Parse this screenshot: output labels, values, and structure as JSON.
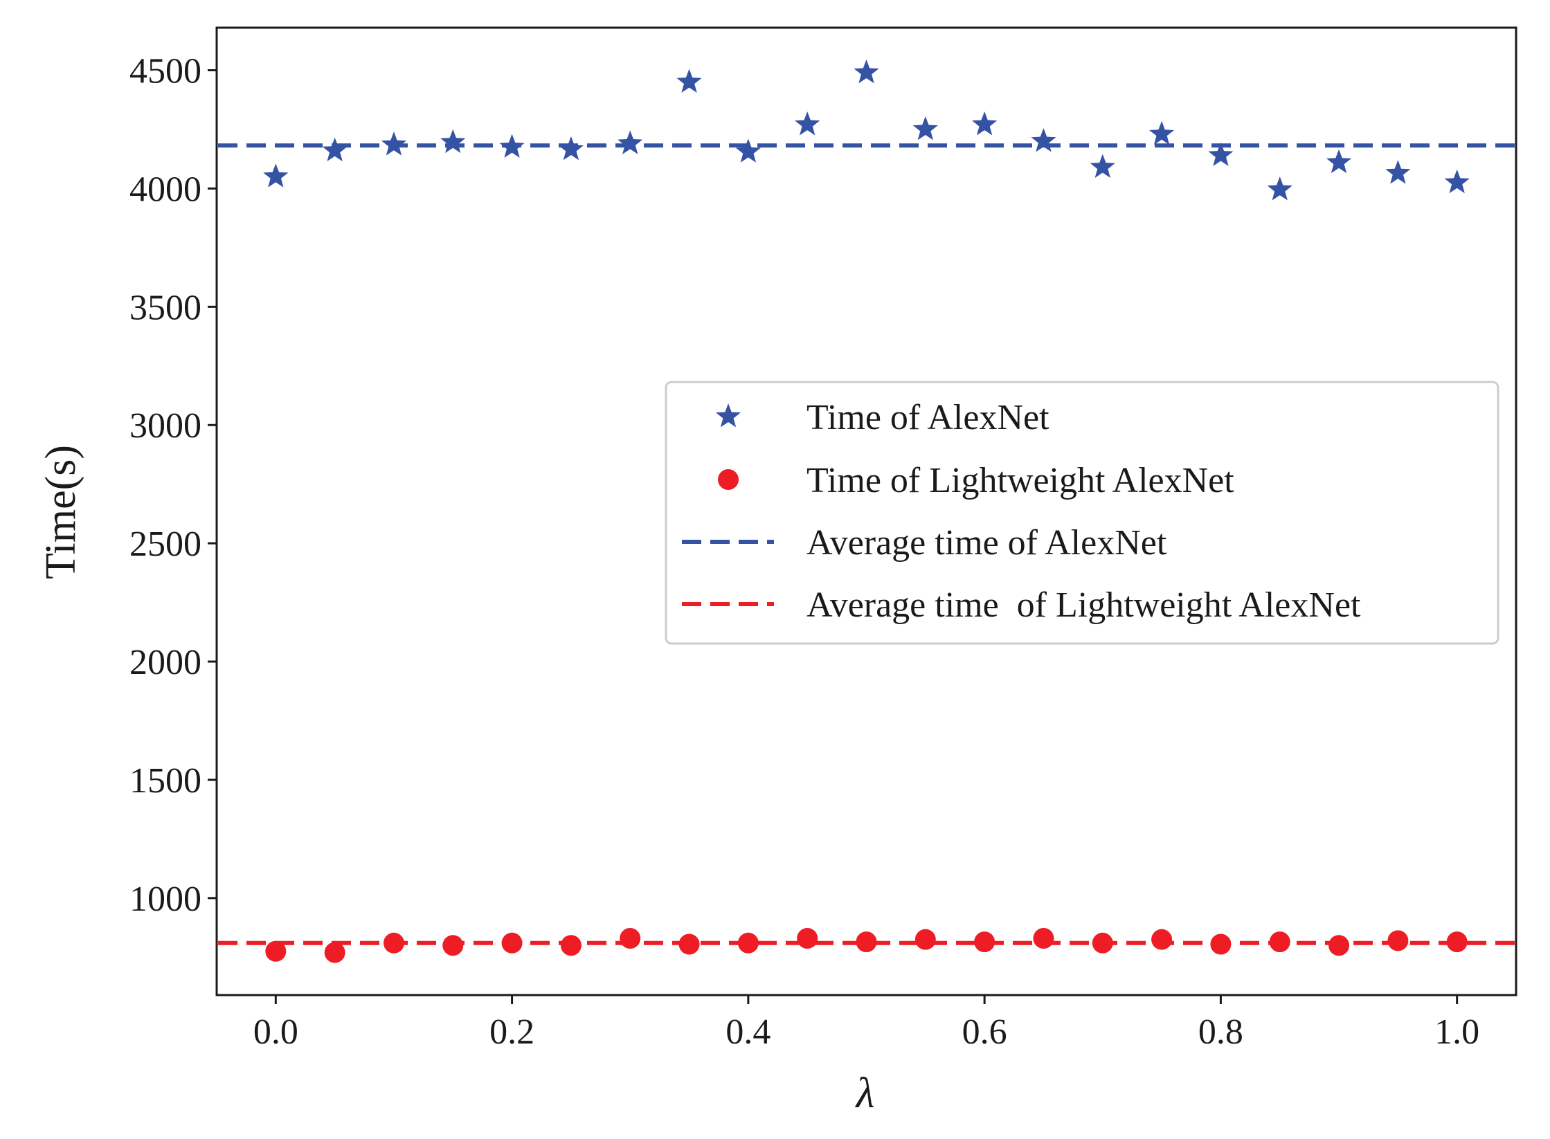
{
  "chart_data": {
    "type": "scatter",
    "title": "",
    "xlabel": "λ",
    "ylabel": "Time(s)",
    "xlim": [
      -0.05,
      1.05
    ],
    "ylim": [
      590,
      4680
    ],
    "xticks": [
      0.0,
      0.2,
      0.4,
      0.6,
      0.8,
      1.0
    ],
    "xtick_labels": [
      "0.0",
      "0.2",
      "0.4",
      "0.6",
      "0.8",
      "1.0"
    ],
    "yticks": [
      1000,
      1500,
      2000,
      2500,
      3000,
      3500,
      4000,
      4500
    ],
    "ytick_labels": [
      "1000",
      "1500",
      "2000",
      "2500",
      "3000",
      "3500",
      "4000",
      "4500"
    ],
    "x": [
      0.0,
      0.05,
      0.1,
      0.15,
      0.2,
      0.25,
      0.3,
      0.35,
      0.4,
      0.45,
      0.5,
      0.55,
      0.6,
      0.65,
      0.7,
      0.75,
      0.8,
      0.85,
      0.9,
      0.95,
      1.0
    ],
    "series": [
      {
        "name": "Time of AlexNet",
        "kind": "scatter",
        "marker": "star",
        "color": "#3553a4",
        "values": [
          4050,
          4160,
          4185,
          4195,
          4175,
          4165,
          4190,
          4450,
          4155,
          4270,
          4490,
          4250,
          4270,
          4200,
          4090,
          4230,
          4140,
          3995,
          4110,
          4065,
          4025
        ]
      },
      {
        "name": "Time of Lightweight AlexNet",
        "kind": "scatter",
        "marker": "circle",
        "color": "#ee1c25",
        "values": [
          775,
          770,
          810,
          800,
          810,
          800,
          830,
          805,
          810,
          830,
          815,
          825,
          815,
          830,
          810,
          825,
          805,
          815,
          800,
          820,
          815
        ]
      },
      {
        "name": "Average time of AlexNet",
        "kind": "hline",
        "color": "#3553a4",
        "value": 4182
      },
      {
        "name": "Average time  of Lightweight AlexNet",
        "kind": "hline",
        "color": "#ee1c25",
        "value": 810
      }
    ],
    "legend_position": "center-right"
  }
}
